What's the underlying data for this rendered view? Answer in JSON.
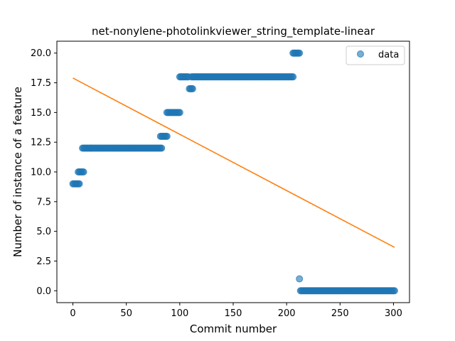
{
  "chart_data": {
    "type": "scatter",
    "title": "net-nonylene-photolinkviewer_string_template-linear",
    "xlabel": "Commit number",
    "ylabel": "Number of instance of a feature",
    "xlim": [
      -15,
      315
    ],
    "ylim": [
      -1,
      21
    ],
    "xticks": [
      0,
      50,
      100,
      150,
      200,
      250,
      300
    ],
    "xtick_labels": [
      "0",
      "50",
      "100",
      "150",
      "200",
      "250",
      "300"
    ],
    "yticks": [
      0,
      2.5,
      5,
      7.5,
      10,
      12.5,
      15,
      17.5,
      20
    ],
    "ytick_labels": [
      "0.0",
      "2.5",
      "5.0",
      "7.5",
      "10.0",
      "12.5",
      "15.0",
      "17.5",
      "20.0"
    ],
    "legend": {
      "placement": "top-right",
      "entries": [
        "data"
      ]
    },
    "colors": {
      "points": "#1f77b4",
      "fit": "#ff7f0e"
    },
    "series": [
      {
        "name": "data",
        "kind": "scatter",
        "segments": [
          {
            "x_start": 0,
            "x_end": 6,
            "y": 9
          },
          {
            "x_start": 5,
            "x_end": 10,
            "y": 10
          },
          {
            "x_start": 9,
            "x_end": 83,
            "y": 12
          },
          {
            "x_start": 82,
            "x_end": 88,
            "y": 13
          },
          {
            "x_start": 88,
            "x_end": 100,
            "y": 15
          },
          {
            "x_start": 100,
            "x_end": 108,
            "y": 18
          },
          {
            "x_start": 109,
            "x_end": 112,
            "y": 17
          },
          {
            "x_start": 111,
            "x_end": 206,
            "y": 18
          },
          {
            "x_start": 206,
            "x_end": 212,
            "y": 20
          },
          {
            "x_start": 212,
            "x_end": 212,
            "y": 1
          },
          {
            "x_start": 213,
            "x_end": 301,
            "y": 0
          }
        ]
      },
      {
        "kind": "line",
        "x": [
          0,
          301
        ],
        "y": [
          17.9,
          3.65
        ]
      }
    ]
  }
}
